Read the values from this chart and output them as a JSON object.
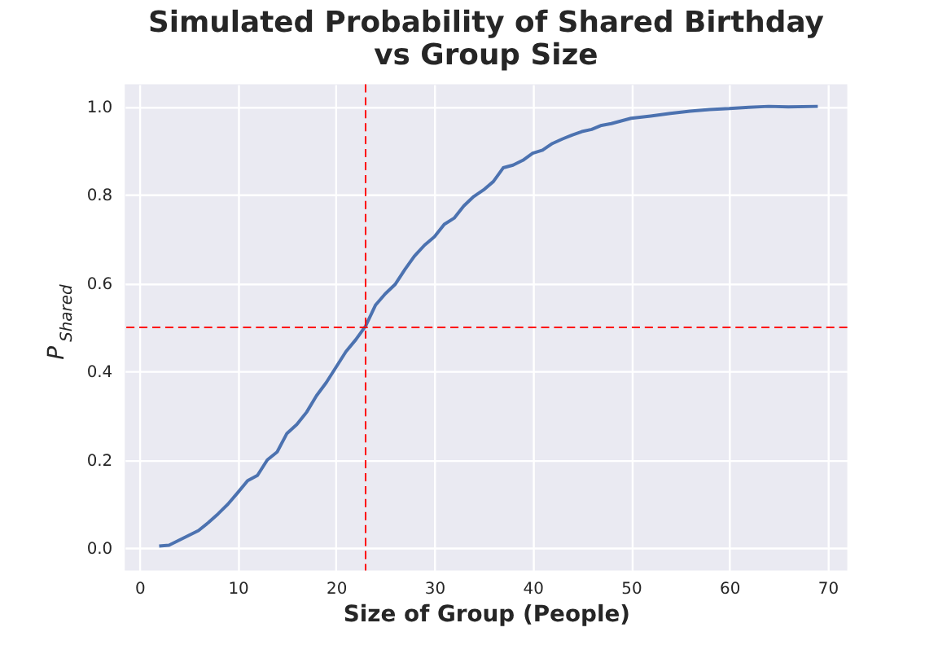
{
  "chart_data": {
    "type": "line",
    "title": [
      "Simulated Probability of Shared Birthday",
      "vs Group Size"
    ],
    "xlabel": "Size of Group (People)",
    "ylabel": "P$_{Shared}$",
    "x": [
      2,
      3,
      4,
      5,
      6,
      7,
      8,
      9,
      10,
      11,
      12,
      13,
      14,
      15,
      16,
      17,
      18,
      19,
      20,
      21,
      22,
      23,
      24,
      25,
      26,
      27,
      28,
      29,
      30,
      31,
      32,
      33,
      34,
      35,
      36,
      37,
      38,
      39,
      40,
      41,
      42,
      43,
      44,
      45,
      46,
      47,
      48,
      49,
      50,
      52,
      54,
      56,
      58,
      60,
      62,
      64,
      66,
      69
    ],
    "series": [
      {
        "color": "#4c72b0",
        "values": [
          0.005,
          0.007,
          0.018,
          0.029,
          0.04,
          0.058,
          0.078,
          0.1,
          0.126,
          0.153,
          0.165,
          0.2,
          0.218,
          0.26,
          0.28,
          0.308,
          0.345,
          0.375,
          0.41,
          0.445,
          0.472,
          0.503,
          0.55,
          0.576,
          0.597,
          0.631,
          0.662,
          0.686,
          0.705,
          0.733,
          0.747,
          0.775,
          0.796,
          0.811,
          0.83,
          0.861,
          0.867,
          0.878,
          0.894,
          0.901,
          0.916,
          0.926,
          0.935,
          0.943,
          0.948,
          0.957,
          0.961,
          0.967,
          0.973,
          0.978,
          0.984,
          0.989,
          0.993,
          0.995,
          0.998,
          1.0,
          0.999,
          1.0
        ]
      }
    ],
    "xlim": [
      -1.5,
      72
    ],
    "xticks": [
      0,
      10,
      20,
      30,
      40,
      50,
      60,
      70
    ],
    "ylim": [
      -0.05,
      1.05
    ],
    "yticks": [
      {
        "value": 0,
        "label": "0.0"
      },
      {
        "value": 0.2,
        "label": "0.2"
      },
      {
        "value": 0.4,
        "label": "0.4"
      },
      {
        "value": 0.6,
        "label": "0.6"
      },
      {
        "value": 0.8,
        "label": "0.8"
      },
      {
        "value": 1,
        "label": "1.0"
      }
    ],
    "ref_lines": [
      {
        "axis": "x",
        "value": 23,
        "color": "#ff0000",
        "line_style": "dashed"
      },
      {
        "axis": "y",
        "value": 0.5,
        "color": "#ff0000",
        "line_style": "dashed"
      }
    ],
    "grid": true
  }
}
